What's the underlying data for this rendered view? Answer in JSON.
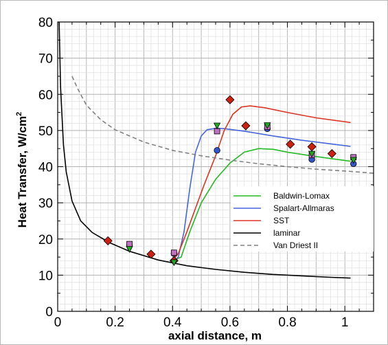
{
  "chart_data": {
    "type": "line",
    "xlabel": "axial distance, m",
    "ylabel_text": "Heat Transfer, W/cm",
    "ylabel_superscript": "2",
    "xlim": [
      0,
      1.1
    ],
    "ylim": [
      0,
      80
    ],
    "x_ticks": [
      "0",
      "0.2",
      "0.4",
      "0.6",
      "0.8",
      "1"
    ],
    "x_tick_values": [
      0,
      0.2,
      0.4,
      0.6,
      0.8,
      1.0
    ],
    "y_ticks": [
      "0",
      "10",
      "20",
      "30",
      "40",
      "50",
      "60",
      "70",
      "80"
    ],
    "y_tick_values": [
      0,
      10,
      20,
      30,
      40,
      50,
      60,
      70,
      80
    ],
    "grid": true,
    "legend_position": "lower-right",
    "series": [
      {
        "name": "Baldwin-Lomax",
        "color": "#22bb22",
        "style": "solid",
        "x": [
          0.4,
          0.43,
          0.46,
          0.5,
          0.55,
          0.6,
          0.65,
          0.7,
          0.75,
          0.8,
          0.9,
          1.02
        ],
        "y": [
          14.0,
          15.0,
          22.0,
          30.0,
          36.5,
          41.0,
          44.0,
          45.0,
          44.8,
          44.0,
          42.8,
          41.5
        ]
      },
      {
        "name": "Spalart-Allmaras",
        "color": "#4466dd",
        "style": "solid",
        "x": [
          0.4,
          0.42,
          0.44,
          0.46,
          0.48,
          0.5,
          0.52,
          0.55,
          0.58,
          0.65,
          0.75,
          0.85,
          0.95,
          1.02
        ],
        "y": [
          13.5,
          15.0,
          22.0,
          34.0,
          44.0,
          48.5,
          50.2,
          50.6,
          50.5,
          49.8,
          48.5,
          47.3,
          46.3,
          45.6
        ]
      },
      {
        "name": "SST",
        "color": "#dd3322",
        "style": "solid",
        "x": [
          0.4,
          0.42,
          0.45,
          0.48,
          0.51,
          0.55,
          0.58,
          0.61,
          0.64,
          0.67,
          0.72,
          0.8,
          0.9,
          1.02
        ],
        "y": [
          14.0,
          16.0,
          22.0,
          28.5,
          35.0,
          43.0,
          50.0,
          54.5,
          56.5,
          56.8,
          56.3,
          55.0,
          53.5,
          52.2
        ]
      },
      {
        "name": "laminar",
        "color": "#000000",
        "style": "solid",
        "x": [
          0.005,
          0.01,
          0.02,
          0.03,
          0.05,
          0.08,
          0.12,
          0.18,
          0.25,
          0.35,
          0.45,
          0.55,
          0.65,
          0.75,
          0.85,
          0.95,
          1.02
        ],
        "y": [
          80.0,
          62.0,
          46.0,
          38.5,
          30.5,
          25.0,
          21.8,
          19.0,
          16.6,
          14.2,
          12.6,
          11.6,
          10.8,
          10.2,
          9.8,
          9.4,
          9.2
        ]
      },
      {
        "name": "Van Driest II",
        "color": "#808080",
        "style": "dashed",
        "x": [
          0.05,
          0.07,
          0.1,
          0.15,
          0.2,
          0.3,
          0.4,
          0.5,
          0.6,
          0.7,
          0.8,
          0.9,
          1.0,
          1.1
        ],
        "y": [
          65.0,
          61.5,
          57.0,
          53.0,
          50.2,
          46.8,
          44.5,
          43.0,
          41.8,
          40.8,
          40.0,
          39.3,
          38.8,
          38.2
        ]
      }
    ],
    "markers": [
      {
        "shape": "diamond",
        "color": "#cc2211",
        "x": [
          0.175,
          0.325,
          0.405,
          0.6,
          0.655,
          0.81,
          0.885,
          0.955
        ],
        "y": [
          19.5,
          15.8,
          14.0,
          58.5,
          51.3,
          46.2,
          45.5,
          43.6
        ]
      },
      {
        "shape": "circle",
        "color": "#3355cc",
        "x": [
          0.25,
          0.405,
          0.555,
          0.73,
          0.885,
          1.03
        ],
        "y": [
          18.2,
          16.0,
          44.5,
          50.5,
          42.0,
          40.8
        ]
      },
      {
        "shape": "square",
        "color": "#c070c0",
        "x": [
          0.25,
          0.405,
          0.555,
          0.73,
          0.885,
          1.03
        ],
        "y": [
          18.6,
          16.2,
          49.8,
          51.0,
          43.2,
          42.6
        ]
      },
      {
        "shape": "triangle-down",
        "color": "#22aa22",
        "x": [
          0.25,
          0.405,
          0.555,
          0.73,
          0.885,
          1.03
        ],
        "y": [
          17.2,
          13.5,
          51.3,
          51.4,
          43.5,
          41.8
        ]
      }
    ]
  }
}
